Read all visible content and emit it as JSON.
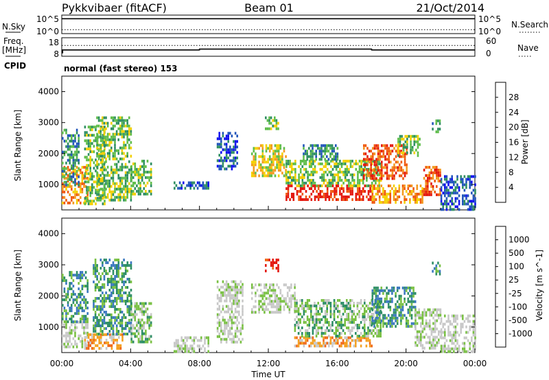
{
  "header": {
    "radar": "Pykkvibaer (fitACF)",
    "beam": "Beam 01",
    "date": "21/Oct/2014"
  },
  "chart_data": [
    {
      "type": "line",
      "name": "noise-panel",
      "left_label": "N.Sky",
      "right_label": "N.Search",
      "left_ticks": [
        "10^5",
        "10^0"
      ],
      "right_ticks": [
        "10^5",
        "10^0"
      ],
      "series": [
        {
          "name": "N.Sky",
          "style": "solid",
          "x": [
            0,
            24
          ],
          "y": [
            80000,
            80000
          ]
        },
        {
          "name": "N.Search",
          "style": "dotted",
          "x": [
            0,
            24
          ],
          "y": [
            3,
            3
          ]
        }
      ]
    },
    {
      "type": "line",
      "name": "freq-panel",
      "left_label_1": "Freq.",
      "left_label_2": "[MHz]",
      "right_label": "Nave",
      "left_ticks": [
        "18",
        "8"
      ],
      "right_ticks": [
        "60",
        "0"
      ],
      "cpid_label": "CPID",
      "cpid_text": "normal (fast stereo) 153",
      "series": [
        {
          "name": "Freq",
          "style": "solid",
          "x": [
            0,
            0.05,
            0.05,
            8.0,
            8.0,
            18.0,
            18.0,
            24
          ],
          "y": [
            8,
            8,
            10.3,
            10.3,
            11.0,
            11.0,
            10.3,
            10.3
          ]
        },
        {
          "name": "Nave",
          "style": "dotted",
          "x": [
            0,
            24
          ],
          "y": [
            36,
            36
          ]
        }
      ]
    },
    {
      "type": "heatmap",
      "name": "power-panel",
      "ylabel": "Slant Range [km]",
      "yticks": [
        "1000",
        "2000",
        "3000",
        "4000"
      ],
      "ylim": [
        180,
        4500
      ],
      "xlim": [
        0,
        24
      ],
      "colorbar": {
        "label": "Power [dB]",
        "ticks": [
          "4",
          "8",
          "12",
          "16",
          "20",
          "24",
          "28"
        ],
        "colors": [
          "#1010ee",
          "#2255bb",
          "#2f8f62",
          "#5fbd4a",
          "#f4d000",
          "#f39a20",
          "#f05a10",
          "#e41a10"
        ]
      },
      "echo_regions": [
        {
          "t0": 0.0,
          "t1": 1.5,
          "r0": 400,
          "r1": 1600,
          "level": 5
        },
        {
          "t0": 0.0,
          "t1": 1.0,
          "r0": 1000,
          "r1": 2800,
          "level": 2
        },
        {
          "t0": 1.3,
          "t1": 2.5,
          "r0": 400,
          "r1": 2900,
          "level": 3
        },
        {
          "t0": 2.0,
          "t1": 4.0,
          "r0": 500,
          "r1": 3200,
          "level": 3
        },
        {
          "t0": 4.0,
          "t1": 5.2,
          "r0": 700,
          "r1": 1800,
          "level": 3
        },
        {
          "t0": 6.5,
          "t1": 8.5,
          "r0": 900,
          "r1": 1100,
          "level": 1
        },
        {
          "t0": 9.0,
          "t1": 10.2,
          "r0": 1500,
          "r1": 2700,
          "level": 1
        },
        {
          "t0": 11.0,
          "t1": 13.0,
          "r0": 1300,
          "r1": 2300,
          "level": 4
        },
        {
          "t0": 11.8,
          "t1": 12.6,
          "r0": 2800,
          "r1": 3200,
          "level": 3
        },
        {
          "t0": 13.0,
          "t1": 18.0,
          "r0": 500,
          "r1": 1000,
          "level": 7
        },
        {
          "t0": 13.0,
          "t1": 18.5,
          "r0": 1000,
          "r1": 1800,
          "level": 3
        },
        {
          "t0": 14.0,
          "t1": 16.0,
          "r0": 1800,
          "r1": 2300,
          "level": 2
        },
        {
          "t0": 17.5,
          "t1": 20.0,
          "r0": 1200,
          "r1": 2300,
          "level": 6
        },
        {
          "t0": 18.0,
          "t1": 21.0,
          "r0": 400,
          "r1": 1000,
          "level": 5
        },
        {
          "t0": 19.5,
          "t1": 20.8,
          "r0": 1900,
          "r1": 2600,
          "level": 3
        },
        {
          "t0": 21.0,
          "t1": 22.0,
          "r0": 700,
          "r1": 1600,
          "level": 6
        },
        {
          "t0": 21.5,
          "t1": 22.0,
          "r0": 2700,
          "r1": 3100,
          "level": 2
        },
        {
          "t0": 22.0,
          "t1": 24.0,
          "r0": 200,
          "r1": 1300,
          "level": 1
        }
      ]
    },
    {
      "type": "heatmap",
      "name": "velocity-panel",
      "ylabel": "Slant Range [km]",
      "yticks": [
        "1000",
        "2000",
        "3000",
        "4000"
      ],
      "ylim": [
        180,
        4500
      ],
      "xlim": [
        0,
        24
      ],
      "xticks": [
        "00:00",
        "04:00",
        "08:00",
        "12:00",
        "16:00",
        "20:00",
        "00:00"
      ],
      "xlabel": "Time UT",
      "colorbar": {
        "label": "Velocity [m s^-1]",
        "ticks": [
          "1000",
          "500",
          "100",
          "25",
          "-25",
          "-100",
          "-500",
          "-1000"
        ],
        "colors": [
          "#1b3fb0",
          "#3b78c0",
          "#2e8e66",
          "#79c043",
          "#c8c8c8",
          "#c8c8c8",
          "#f4a020",
          "#f06818",
          "#e41a10"
        ]
      },
      "echo_regions": [
        {
          "t0": 0.0,
          "t1": 1.5,
          "r0": 400,
          "r1": 1200,
          "level": 4
        },
        {
          "t0": 0.0,
          "t1": 1.5,
          "r0": 1200,
          "r1": 2800,
          "level": 2
        },
        {
          "t0": 1.3,
          "t1": 3.5,
          "r0": 300,
          "r1": 800,
          "level": 6
        },
        {
          "t0": 1.8,
          "t1": 4.0,
          "r0": 800,
          "r1": 3200,
          "level": 2
        },
        {
          "t0": 4.0,
          "t1": 5.2,
          "r0": 500,
          "r1": 1800,
          "level": 3
        },
        {
          "t0": 6.5,
          "t1": 8.5,
          "r0": 200,
          "r1": 700,
          "level": 4
        },
        {
          "t0": 9.0,
          "t1": 10.5,
          "r0": 500,
          "r1": 2500,
          "level": 4
        },
        {
          "t0": 11.0,
          "t1": 13.5,
          "r0": 1500,
          "r1": 2400,
          "level": 4
        },
        {
          "t0": 11.8,
          "t1": 12.6,
          "r0": 2800,
          "r1": 3200,
          "level": 8
        },
        {
          "t0": 13.5,
          "t1": 18.0,
          "r0": 400,
          "r1": 700,
          "level": 6
        },
        {
          "t0": 13.5,
          "t1": 18.5,
          "r0": 700,
          "r1": 1900,
          "level": 3
        },
        {
          "t0": 18.0,
          "t1": 20.5,
          "r0": 1000,
          "r1": 2300,
          "level": 2
        },
        {
          "t0": 20.5,
          "t1": 22.0,
          "r0": 300,
          "r1": 1600,
          "level": 4
        },
        {
          "t0": 21.5,
          "t1": 22.0,
          "r0": 2700,
          "r1": 3100,
          "level": 2
        },
        {
          "t0": 22.0,
          "t1": 24.0,
          "r0": 200,
          "r1": 1400,
          "level": 4
        }
      ]
    }
  ]
}
